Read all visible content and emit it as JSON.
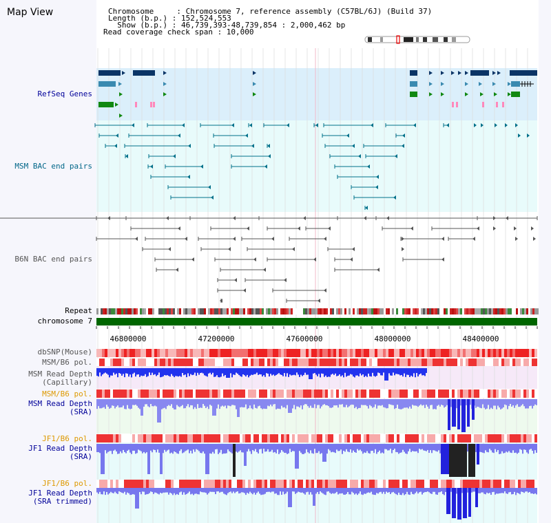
{
  "title": "Map View",
  "info": {
    "chromosome": "Chromosome     : Chromosome 7, reference assembly (C57BL/6J) (Build 37)",
    "length": "Length (b.p.) : 152,524,553",
    "show": "  Show (b.p.) : 46,739,393-48,739,854 : 2,000,462 bp",
    "coverage": "Read coverage check span : 10,000"
  },
  "tracks": {
    "refseq": "RefSeq Genes",
    "msm_bac": "MSM BAC end pairs",
    "b6n_bac": "B6N BAC end pairs",
    "repeat": "Repeat",
    "chromosome": "chromosome 7",
    "dbsnp": "dbSNP(Mouse)",
    "msm_pol1": "MSM/B6 pol.",
    "msm_depth_cap_1": "MSM Read Depth",
    "msm_depth_cap_2": "(Capillary)",
    "msm_pol2": "MSM/B6 pol.",
    "msm_depth_sra_1": "MSM Read Depth",
    "msm_depth_sra_2": "(SRA)",
    "jf1_pol1": "JF1/B6 pol.",
    "jf1_depth_sra_1": "JF1 Read Depth",
    "jf1_depth_sra_2": "(SRA)",
    "jf1_pol2": "JF1/B6 pol.",
    "jf1_depth_trim_1": "JF1 Read Depth",
    "jf1_depth_trim_2": "(SRA trimmed)"
  },
  "axis": {
    "ticks": [
      "46800000",
      "47200000",
      "47600000",
      "48000000",
      "48400000"
    ]
  },
  "colors": {
    "refseq_bg": "#dbeffb",
    "msm_bac_bg": "#e8fbfb",
    "chromosome": "#006600",
    "depth": "#3333ee",
    "polymorphism": "#ee2222"
  }
}
